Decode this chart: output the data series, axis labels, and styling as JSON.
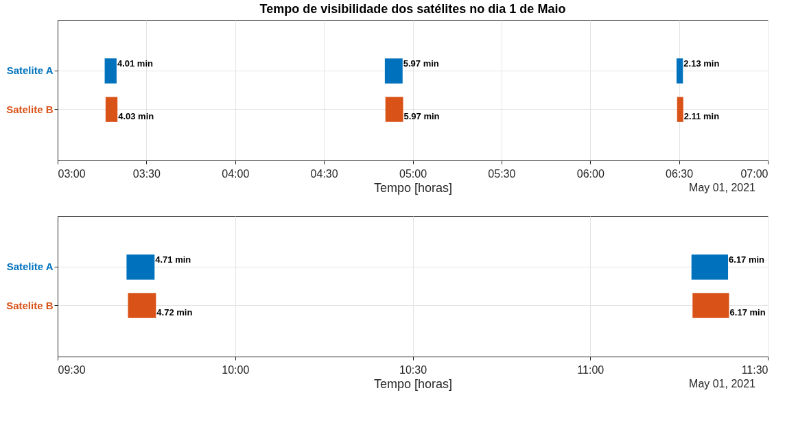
{
  "chart_data": [
    {
      "type": "bar",
      "orientation": "horizontal",
      "title": "Tempo de visibilidade dos satélites no dia 1 de Maio",
      "xlabel": "Tempo [horas]",
      "categories": [
        "Satelite A",
        "Satelite B"
      ],
      "series": [
        {
          "colors": [
            "#0072bd",
            "#d95319"
          ],
          "base": [
            3.265,
            3.27
          ],
          "values": [
            0.067,
            0.067
          ]
        },
        {
          "colors": [
            "#0072bd",
            "#d95319"
          ],
          "base": [
            4.843,
            4.846
          ],
          "values": [
            0.1,
            0.1
          ]
        },
        {
          "colors": [
            "#0072bd",
            "#d95319"
          ],
          "base": [
            6.486,
            6.489
          ],
          "values": [
            0.036,
            0.035
          ]
        }
      ],
      "xlim": [
        3,
        7
      ],
      "xticks": [
        {
          "value": 3,
          "label": "03:00"
        },
        {
          "value": 3.5,
          "label": "03:30"
        },
        {
          "value": 4,
          "label": "04:00"
        },
        {
          "value": 4.5,
          "label": "04:30"
        },
        {
          "value": 5,
          "label": "05:00"
        },
        {
          "value": 5.5,
          "label": "05:30"
        },
        {
          "value": 6,
          "label": "06:00"
        },
        {
          "value": 6.5,
          "label": "06:30"
        },
        {
          "value": 7,
          "label": "07:00"
        }
      ],
      "grid": true,
      "annotations": [
        {
          "text": "4.01 min",
          "x": 3.332,
          "y": "Satelite A"
        },
        {
          "text": "4.03 min",
          "x": 3.337,
          "y": "Satelite B"
        },
        {
          "text": "5.97 min",
          "x": 4.943,
          "y": "Satelite A"
        },
        {
          "text": "5.97 min",
          "x": 4.946,
          "y": "Satelite B"
        },
        {
          "text": "2.13 min",
          "x": 6.522,
          "y": "Satelite A"
        },
        {
          "text": "2.11 min",
          "x": 6.524,
          "y": "Satelite B"
        },
        "May 01, 2021"
      ]
    },
    {
      "type": "bar",
      "orientation": "horizontal",
      "xlabel": "Tempo [horas]",
      "categories": [
        "Satelite A",
        "Satelite B"
      ],
      "series": [
        {
          "colors": [
            "#0072bd",
            "#d95319"
          ],
          "base": [
            9.694,
            9.698
          ],
          "values": [
            0.079,
            0.079
          ]
        },
        {
          "colors": [
            "#0072bd",
            "#d95319"
          ],
          "base": [
            11.285,
            11.288
          ],
          "values": [
            0.103,
            0.103
          ]
        }
      ],
      "xlim": [
        9.5,
        11.5
      ],
      "xticks": [
        {
          "value": 9.5,
          "label": "09:30"
        },
        {
          "value": 10,
          "label": "10:00"
        },
        {
          "value": 10.5,
          "label": "10:30"
        },
        {
          "value": 11,
          "label": "11:00"
        },
        {
          "value": 11.5,
          "label": "11:30"
        }
      ],
      "grid": true,
      "annotations": [
        {
          "text": "4.71 min",
          "x": 9.773,
          "y": "Satelite A"
        },
        {
          "text": "4.72 min",
          "x": 9.777,
          "y": "Satelite B"
        },
        {
          "text": "6.17 min",
          "x": 11.388,
          "y": "Satelite A"
        },
        {
          "text": "6.17 min",
          "x": 11.391,
          "y": "Satelite B"
        },
        "May 01, 2021"
      ]
    }
  ]
}
